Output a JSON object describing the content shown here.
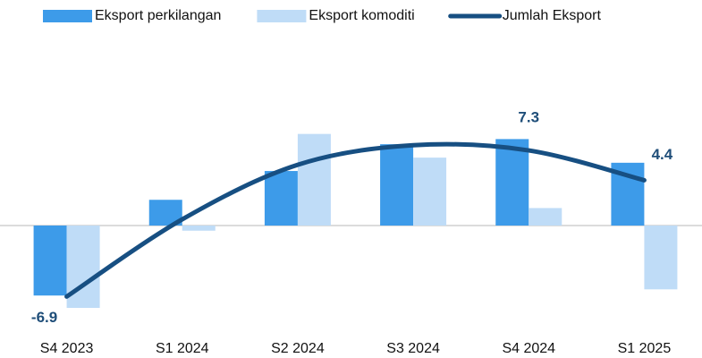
{
  "chart_data": {
    "type": "bar",
    "categories": [
      "S4 2023",
      "S1 2024",
      "S2 2024",
      "S3 2024",
      "S4 2024",
      "S1 2025"
    ],
    "series": [
      {
        "name": "Eksport perkilangan",
        "color": "#3d9be9",
        "values": [
          -6.8,
          2.5,
          5.3,
          7.9,
          8.4,
          6.1
        ]
      },
      {
        "name": "Eksport komoditi",
        "color": "#bfdcf7",
        "values": [
          -8.0,
          -0.5,
          8.9,
          6.6,
          1.7,
          -6.2
        ]
      },
      {
        "name": "Jumlah Eksport",
        "type": "line",
        "color": "#174f82",
        "values": [
          -6.9,
          0.6,
          5.9,
          7.8,
          7.3,
          4.4
        ],
        "value_labels": [
          "-6.9",
          null,
          null,
          null,
          "7.3",
          "4.4"
        ]
      }
    ],
    "ylim": [
      -10,
      16
    ]
  }
}
